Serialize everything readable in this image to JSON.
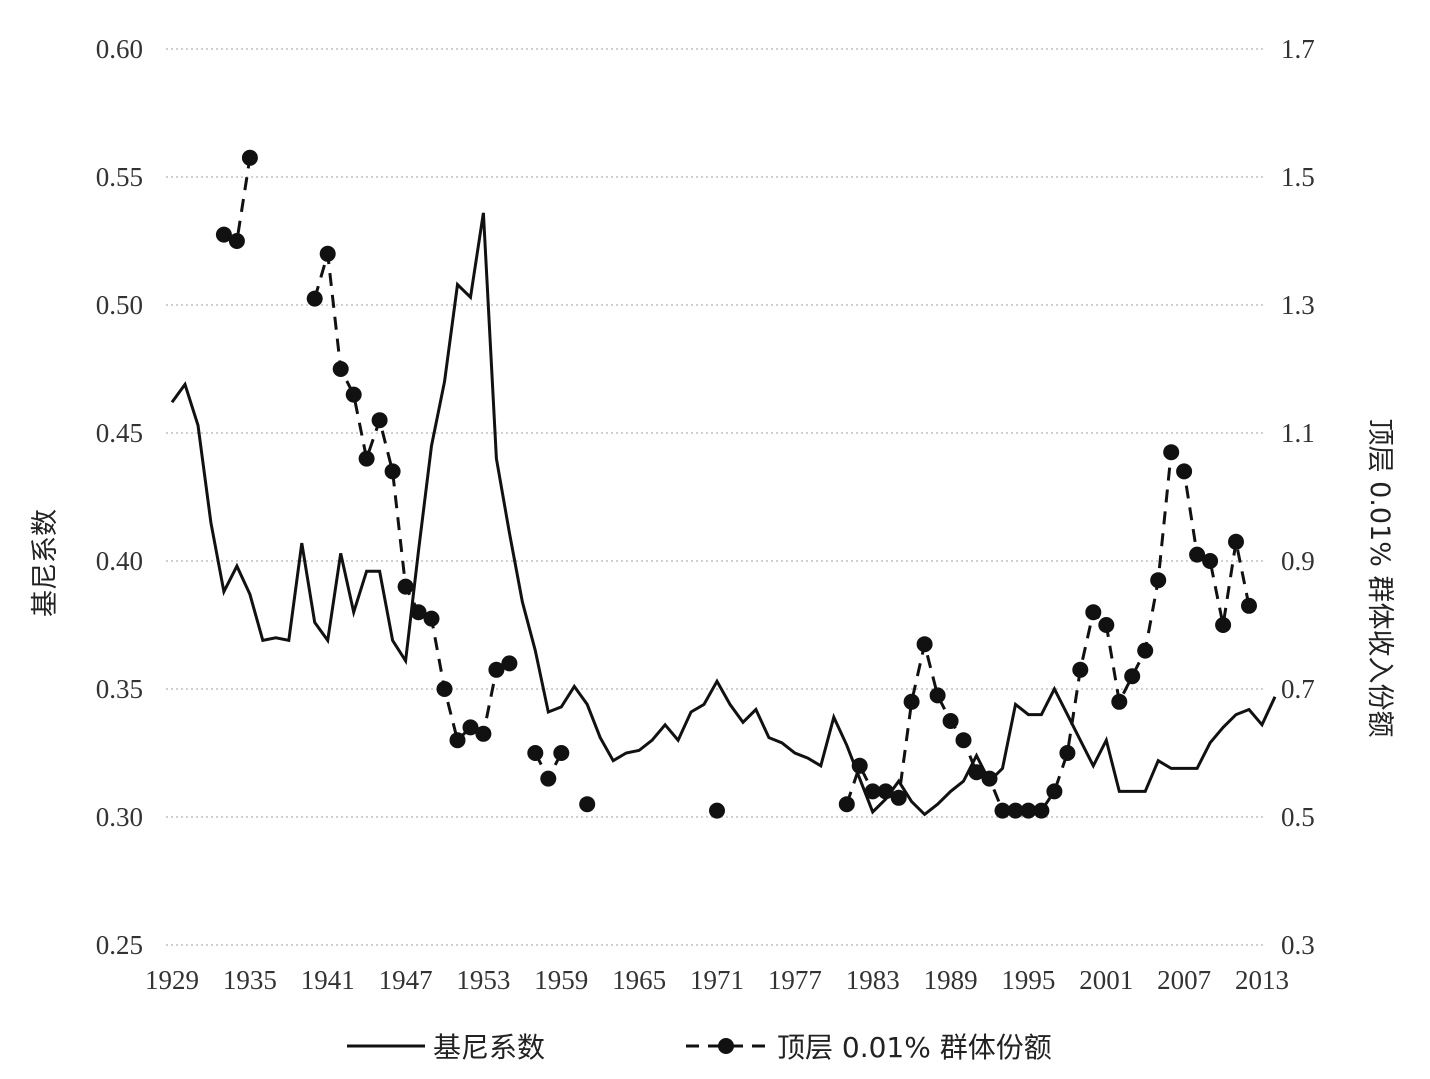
{
  "chart_data": {
    "type": "line",
    "xlabel": "",
    "ylabel": "基尼系数",
    "y2label": "顶层 0.01% 群体收入份额",
    "xlim": [
      1929,
      2013
    ],
    "ylim": [
      0.25,
      0.6
    ],
    "y2lim": [
      0.3,
      1.7
    ],
    "x_ticks": [
      "1929",
      "1935",
      "1941",
      "1947",
      "1953",
      "1959",
      "1965",
      "1971",
      "1977",
      "1983",
      "1989",
      "1995",
      "2001",
      "2007",
      "2013"
    ],
    "y_ticks": [
      "0.25",
      "0.30",
      "0.35",
      "0.40",
      "0.45",
      "0.50",
      "0.55",
      "0.60"
    ],
    "y2_ticks": [
      "0.3",
      "0.5",
      "0.7",
      "0.9",
      "1.1",
      "1.3",
      "1.5",
      "1.7"
    ],
    "grid": true,
    "legend_position": "bottom",
    "series": [
      {
        "name": "基尼系数",
        "axis": "left",
        "style": "solid",
        "points": [
          [
            1929,
            0.462
          ],
          [
            1930,
            0.469
          ],
          [
            1931,
            0.453
          ],
          [
            1932,
            0.415
          ],
          [
            1933,
            0.388
          ],
          [
            1934,
            0.398
          ],
          [
            1935,
            0.387
          ],
          [
            1936,
            0.369
          ],
          [
            1937,
            0.37
          ],
          [
            1938,
            0.369
          ],
          [
            1939,
            0.407
          ],
          [
            1940,
            0.376
          ],
          [
            1941,
            0.369
          ],
          [
            1942,
            0.403
          ],
          [
            1943,
            0.38
          ],
          [
            1944,
            0.396
          ],
          [
            1945,
            0.396
          ],
          [
            1946,
            0.369
          ],
          [
            1947,
            0.361
          ],
          [
            1948,
            0.404
          ],
          [
            1949,
            0.445
          ],
          [
            1950,
            0.47
          ],
          [
            1951,
            0.508
          ],
          [
            1952,
            0.503
          ],
          [
            1953,
            0.536
          ],
          [
            1954,
            0.44
          ],
          [
            1955,
            0.411
          ],
          [
            1956,
            0.384
          ],
          [
            1957,
            0.365
          ],
          [
            1958,
            0.341
          ],
          [
            1959,
            0.343
          ],
          [
            1960,
            0.351
          ],
          [
            1961,
            0.344
          ],
          [
            1962,
            0.331
          ],
          [
            1963,
            0.322
          ],
          [
            1964,
            0.325
          ],
          [
            1965,
            0.326
          ],
          [
            1966,
            0.33
          ],
          [
            1967,
            0.336
          ],
          [
            1968,
            0.33
          ],
          [
            1969,
            0.341
          ],
          [
            1970,
            0.344
          ],
          [
            1971,
            0.353
          ],
          [
            1972,
            0.344
          ],
          [
            1973,
            0.337
          ],
          [
            1974,
            0.342
          ],
          [
            1975,
            0.331
          ],
          [
            1976,
            0.329
          ],
          [
            1977,
            0.325
          ],
          [
            1978,
            0.323
          ],
          [
            1979,
            0.32
          ],
          [
            1980,
            0.339
          ],
          [
            1981,
            0.328
          ],
          [
            1982,
            0.315
          ],
          [
            1983,
            0.302
          ],
          [
            1984,
            0.307
          ],
          [
            1985,
            0.314
          ],
          [
            1986,
            0.306
          ],
          [
            1987,
            0.301
          ],
          [
            1988,
            0.305
          ],
          [
            1989,
            0.31
          ],
          [
            1990,
            0.314
          ],
          [
            1991,
            0.324
          ],
          [
            1992,
            0.314
          ],
          [
            1993,
            0.319
          ],
          [
            1994,
            0.344
          ],
          [
            1995,
            0.34
          ],
          [
            1996,
            0.34
          ],
          [
            1997,
            0.35
          ],
          [
            1998,
            0.34
          ],
          [
            1999,
            0.33
          ],
          [
            2000,
            0.32
          ],
          [
            2001,
            0.33
          ],
          [
            2002,
            0.31
          ],
          [
            2003,
            0.31
          ],
          [
            2004,
            0.31
          ],
          [
            2005,
            0.322
          ],
          [
            2006,
            0.319
          ],
          [
            2007,
            0.319
          ],
          [
            2008,
            0.319
          ],
          [
            2009,
            0.329
          ],
          [
            2010,
            0.335
          ],
          [
            2011,
            0.34
          ],
          [
            2012,
            0.342
          ],
          [
            2013,
            0.336
          ],
          [
            2014,
            0.347
          ]
        ]
      },
      {
        "name": "顶层 0.01% 群体份额",
        "axis": "right",
        "style": "dashed-markers",
        "segments": [
          [
            [
              1933,
              1.41
            ],
            [
              1934,
              1.4
            ],
            [
              1935,
              1.53
            ]
          ],
          [
            [
              1940,
              1.31
            ],
            [
              1941,
              1.38
            ],
            [
              1942,
              1.2
            ],
            [
              1943,
              1.16
            ],
            [
              1944,
              1.06
            ],
            [
              1945,
              1.12
            ],
            [
              1946,
              1.04
            ],
            [
              1947,
              0.86
            ],
            [
              1948,
              0.82
            ],
            [
              1949,
              0.81
            ],
            [
              1950,
              0.7
            ],
            [
              1951,
              0.62
            ],
            [
              1952,
              0.64
            ],
            [
              1953,
              0.63
            ],
            [
              1954,
              0.73
            ],
            [
              1955,
              0.74
            ]
          ],
          [
            [
              1957,
              0.6
            ],
            [
              1958,
              0.56
            ],
            [
              1959,
              0.6
            ]
          ],
          [
            [
              1961,
              0.52
            ]
          ],
          [
            [
              1971,
              0.51
            ]
          ],
          [
            [
              1981,
              0.52
            ],
            [
              1982,
              0.58
            ],
            [
              1983,
              0.54
            ],
            [
              1984,
              0.54
            ],
            [
              1985,
              0.53
            ],
            [
              1986,
              0.68
            ],
            [
              1987,
              0.77
            ],
            [
              1988,
              0.69
            ],
            [
              1989,
              0.65
            ],
            [
              1990,
              0.62
            ],
            [
              1991,
              0.57
            ],
            [
              1992,
              0.56
            ],
            [
              1993,
              0.51
            ],
            [
              1994,
              0.51
            ],
            [
              1995,
              0.51
            ],
            [
              1996,
              0.51
            ],
            [
              1997,
              0.54
            ],
            [
              1998,
              0.6
            ],
            [
              1999,
              0.73
            ],
            [
              2000,
              0.82
            ],
            [
              2001,
              0.8
            ],
            [
              2002,
              0.68
            ],
            [
              2003,
              0.72
            ],
            [
              2004,
              0.76
            ],
            [
              2005,
              0.87
            ],
            [
              2006,
              1.07
            ],
            [
              2007,
              1.04
            ],
            [
              2008,
              0.91
            ],
            [
              2009,
              0.9
            ],
            [
              2010,
              0.8
            ],
            [
              2011,
              0.93
            ],
            [
              2012,
              0.83
            ]
          ]
        ]
      }
    ]
  }
}
